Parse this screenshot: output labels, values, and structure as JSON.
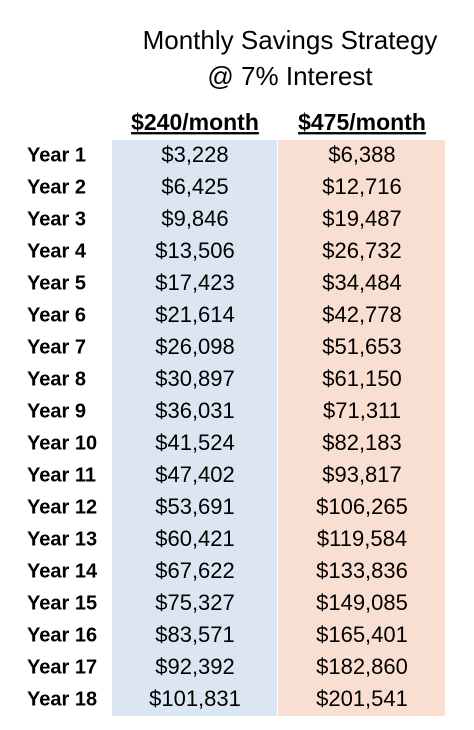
{
  "title": [
    "Monthly Savings Strategy",
    "@ 7% Interest"
  ],
  "table": {
    "header": [
      "$240/month",
      "$475/month"
    ],
    "rows": [
      [
        "Year 1",
        "$3,228",
        "$6,388"
      ],
      [
        "Year 2",
        "$6,425",
        "$12,716"
      ],
      [
        "Year 3",
        "$9,846",
        "$19,487"
      ],
      [
        "Year 4",
        "$13,506",
        "$26,732"
      ],
      [
        "Year 5",
        "$17,423",
        "$34,484"
      ],
      [
        "Year 6",
        "$21,614",
        "$42,778"
      ],
      [
        "Year 7",
        "$26,098",
        "$51,653"
      ],
      [
        "Year 8",
        "$30,897",
        "$61,150"
      ],
      [
        "Year 9",
        "$36,031",
        "$71,311"
      ],
      [
        "Year 10",
        "$41,524",
        "$82,183"
      ],
      [
        "Year 11",
        "$47,402",
        "$93,817"
      ],
      [
        "Year 12",
        "$53,691",
        "$106,265"
      ],
      [
        "Year 13",
        "$60,421",
        "$119,584"
      ],
      [
        "Year 14",
        "$67,622",
        "$133,836"
      ],
      [
        "Year 15",
        "$75,327",
        "$149,085"
      ],
      [
        "Year 16",
        "$83,571",
        "$165,401"
      ],
      [
        "Year 17",
        "$92,392",
        "$182,860"
      ],
      [
        "Year 18",
        "$101,831",
        "$201,541"
      ]
    ]
  }
}
